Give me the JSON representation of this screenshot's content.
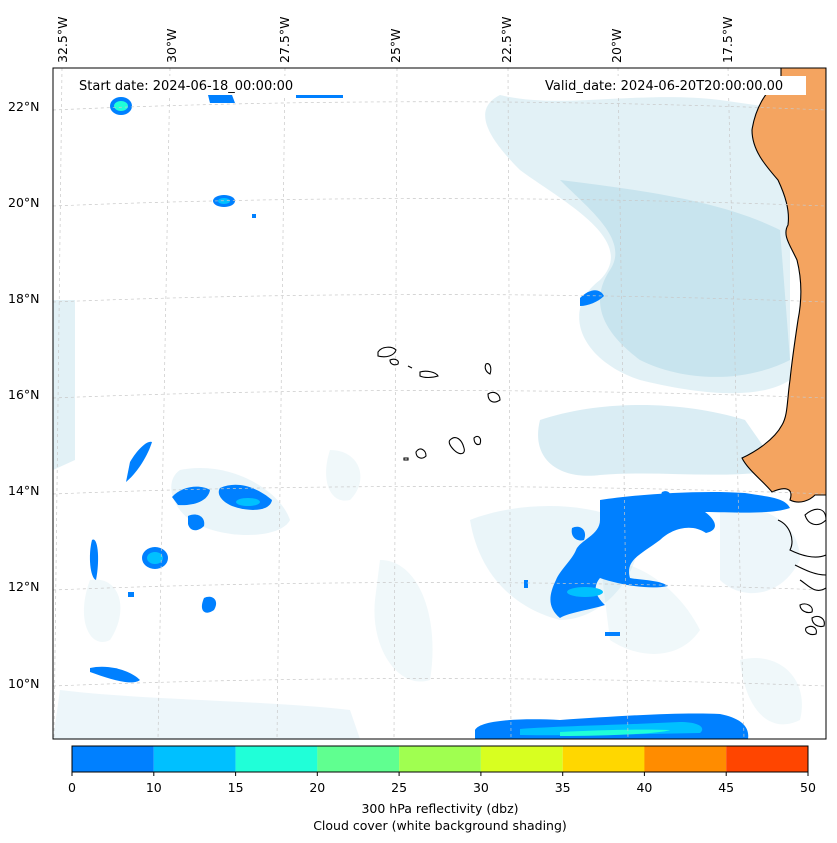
{
  "map": {
    "start_label": "Start date: 2024-06-18_00:00:00",
    "valid_label": "Valid_date: 2024-06-20T20:00:00.00",
    "lon_labels": [
      "32.5°W",
      "30°W",
      "27.5°W",
      "25°W",
      "22.5°W",
      "20°W",
      "17.5°W"
    ],
    "lat_labels": [
      "22°N",
      "20°N",
      "18°N",
      "16°N",
      "14°N",
      "12°N",
      "10°N"
    ],
    "land_color": "#f4a460",
    "cloud_color": "#add8e6"
  },
  "colorbar": {
    "ticks": [
      "0",
      "10",
      "15",
      "20",
      "25",
      "30",
      "35",
      "40",
      "45",
      "50"
    ],
    "colors": [
      "#0080ff",
      "#00c0ff",
      "#20ffd8",
      "#60ff90",
      "#a0ff50",
      "#d8ff20",
      "#ffd700",
      "#ff8c00",
      "#ff4500"
    ],
    "label_line1": "300 hPa reflectivity (dbz)",
    "label_line2": "Cloud cover (white background shading)"
  }
}
